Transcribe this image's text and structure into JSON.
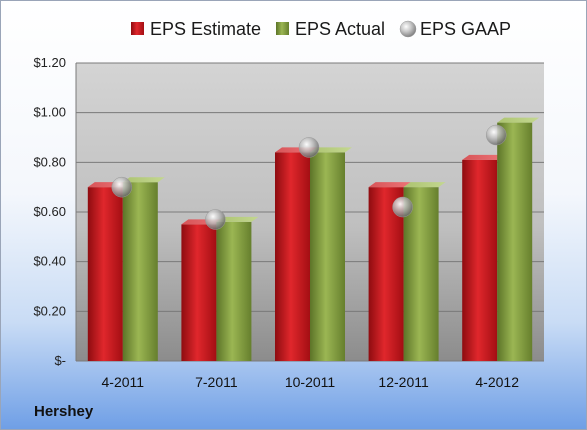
{
  "company": "Hershey",
  "chart_data": {
    "type": "bar",
    "categories": [
      "4-2011",
      "7-2011",
      "10-2011",
      "12-2011",
      "4-2012"
    ],
    "series": [
      {
        "name": "EPS Estimate",
        "type": "bar",
        "color": "#c8141b",
        "values": [
          0.7,
          0.55,
          0.84,
          0.7,
          0.81
        ]
      },
      {
        "name": "EPS Actual",
        "type": "bar",
        "color": "#7e9a3b",
        "values": [
          0.72,
          0.56,
          0.84,
          0.7,
          0.96
        ]
      },
      {
        "name": "EPS GAAP",
        "type": "scatter",
        "color": "#a8a8a8",
        "values": [
          0.7,
          0.57,
          0.86,
          0.62,
          0.91
        ]
      }
    ],
    "yticks": [
      "$-",
      "$0.20",
      "$0.40",
      "$0.60",
      "$0.80",
      "$1.00",
      "$1.20"
    ],
    "ylim": [
      0,
      1.2
    ],
    "grid": true,
    "legend": "top"
  }
}
